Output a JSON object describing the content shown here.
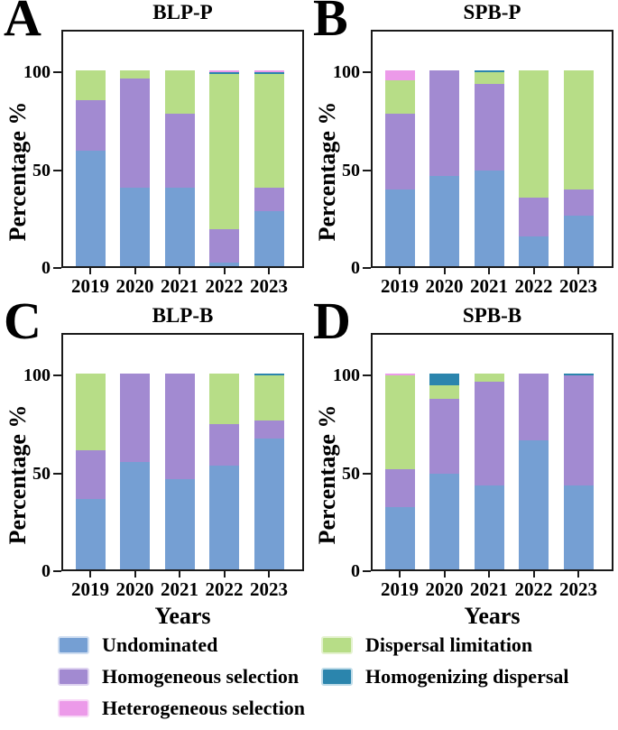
{
  "figure": {
    "ylabel": "Percentage %",
    "xlabel": "Years",
    "yticks": [
      {
        "label": "100",
        "value": 100
      },
      {
        "label": "50",
        "value": 50
      },
      {
        "label": "0",
        "value": 0
      }
    ],
    "axis_color": "#1a1a1a",
    "background": "#ffffff"
  },
  "colors": {
    "undominated": "#759fd3",
    "homogeneous_selection": "#a28ad1",
    "heterogeneous_selection": "#ec9ae9",
    "dispersal_limitation": "#b7dd87",
    "homogenizing_dispersal": "#2b85ad"
  },
  "chart_data": [
    {
      "type": "bar",
      "stacked": true,
      "panel_letter": "A",
      "title": "BLP-P",
      "categories": [
        "2019",
        "2020",
        "2021",
        "2022",
        "2023"
      ],
      "series": [
        {
          "name": "Undominated",
          "color": "#759fd3",
          "values": [
            59,
            40,
            40,
            2,
            28
          ]
        },
        {
          "name": "Homogeneous selection",
          "color": "#a28ad1",
          "values": [
            26,
            56,
            38,
            17,
            12
          ]
        },
        {
          "name": "Dispersal limitation",
          "color": "#b7dd87",
          "values": [
            15,
            4,
            22,
            79,
            58
          ]
        },
        {
          "name": "Homogenizing dispersal",
          "color": "#2b85ad",
          "values": [
            0,
            0,
            0,
            1,
            1
          ]
        },
        {
          "name": "Heterogeneous selection",
          "color": "#ec9ae9",
          "values": [
            0,
            0,
            0,
            1,
            1
          ]
        }
      ],
      "ylabel": "Percentage %",
      "xlabel": "",
      "ylim": [
        0,
        120
      ],
      "grid": false
    },
    {
      "type": "bar",
      "stacked": true,
      "panel_letter": "B",
      "title": "SPB-P",
      "categories": [
        "2019",
        "2020",
        "2021",
        "2022",
        "2023"
      ],
      "series": [
        {
          "name": "Undominated",
          "color": "#759fd3",
          "values": [
            39,
            46,
            49,
            15,
            26
          ]
        },
        {
          "name": "Homogeneous selection",
          "color": "#a28ad1",
          "values": [
            39,
            54,
            44,
            20,
            13
          ]
        },
        {
          "name": "Dispersal limitation",
          "color": "#b7dd87",
          "values": [
            17,
            0,
            6,
            65,
            61
          ]
        },
        {
          "name": "Homogenizing dispersal",
          "color": "#2b85ad",
          "values": [
            0,
            0,
            1,
            0,
            0
          ]
        },
        {
          "name": "Heterogeneous selection",
          "color": "#ec9ae9",
          "values": [
            5,
            0,
            0,
            0,
            0
          ]
        }
      ],
      "ylabel": "Percentage %",
      "xlabel": "",
      "ylim": [
        0,
        120
      ],
      "grid": false
    },
    {
      "type": "bar",
      "stacked": true,
      "panel_letter": "C",
      "title": "BLP-B",
      "categories": [
        "2019",
        "2020",
        "2021",
        "2022",
        "2023"
      ],
      "series": [
        {
          "name": "Undominated",
          "color": "#759fd3",
          "values": [
            36,
            55,
            46,
            53,
            67
          ]
        },
        {
          "name": "Homogeneous selection",
          "color": "#a28ad1",
          "values": [
            25,
            45,
            54,
            21,
            9
          ]
        },
        {
          "name": "Dispersal limitation",
          "color": "#b7dd87",
          "values": [
            39,
            0,
            0,
            26,
            23
          ]
        },
        {
          "name": "Homogenizing dispersal",
          "color": "#2b85ad",
          "values": [
            0,
            0,
            0,
            0,
            1
          ]
        },
        {
          "name": "Heterogeneous selection",
          "color": "#ec9ae9",
          "values": [
            0,
            0,
            0,
            0,
            0
          ]
        }
      ],
      "ylabel": "Percentage %",
      "xlabel": "Years",
      "ylim": [
        0,
        120
      ],
      "grid": false
    },
    {
      "type": "bar",
      "stacked": true,
      "panel_letter": "D",
      "title": "SPB-B",
      "categories": [
        "2019",
        "2020",
        "2021",
        "2022",
        "2023"
      ],
      "series": [
        {
          "name": "Undominated",
          "color": "#759fd3",
          "values": [
            32,
            49,
            43,
            66,
            43
          ]
        },
        {
          "name": "Homogeneous selection",
          "color": "#a28ad1",
          "values": [
            19,
            38,
            53,
            34,
            56
          ]
        },
        {
          "name": "Dispersal limitation",
          "color": "#b7dd87",
          "values": [
            48,
            7,
            4,
            0,
            0
          ]
        },
        {
          "name": "Homogenizing dispersal",
          "color": "#2b85ad",
          "values": [
            0,
            6,
            0,
            0,
            1
          ]
        },
        {
          "name": "Heterogeneous selection",
          "color": "#ec9ae9",
          "values": [
            1,
            0,
            0,
            0,
            0
          ]
        }
      ],
      "ylabel": "Percentage %",
      "xlabel": "Years",
      "ylim": [
        0,
        120
      ],
      "grid": false
    }
  ],
  "legend": {
    "columns": [
      {
        "items": [
          {
            "label": "Undominated",
            "color": "#759fd3",
            "edge": "#cfdef1"
          },
          {
            "label": "Homogeneous selection",
            "color": "#a28ad1",
            "edge": "#ded3f0"
          },
          {
            "label": "Heterogeneous selection",
            "color": "#ec9ae9",
            "edge": "#f8d8f7"
          }
        ]
      },
      {
        "items": [
          {
            "label": "Dispersal limitation",
            "color": "#b7dd87",
            "edge": "#e4f2cf"
          },
          {
            "label": "Homogenizing dispersal",
            "color": "#2b85ad",
            "edge": "#bedbe8"
          }
        ]
      }
    ]
  }
}
